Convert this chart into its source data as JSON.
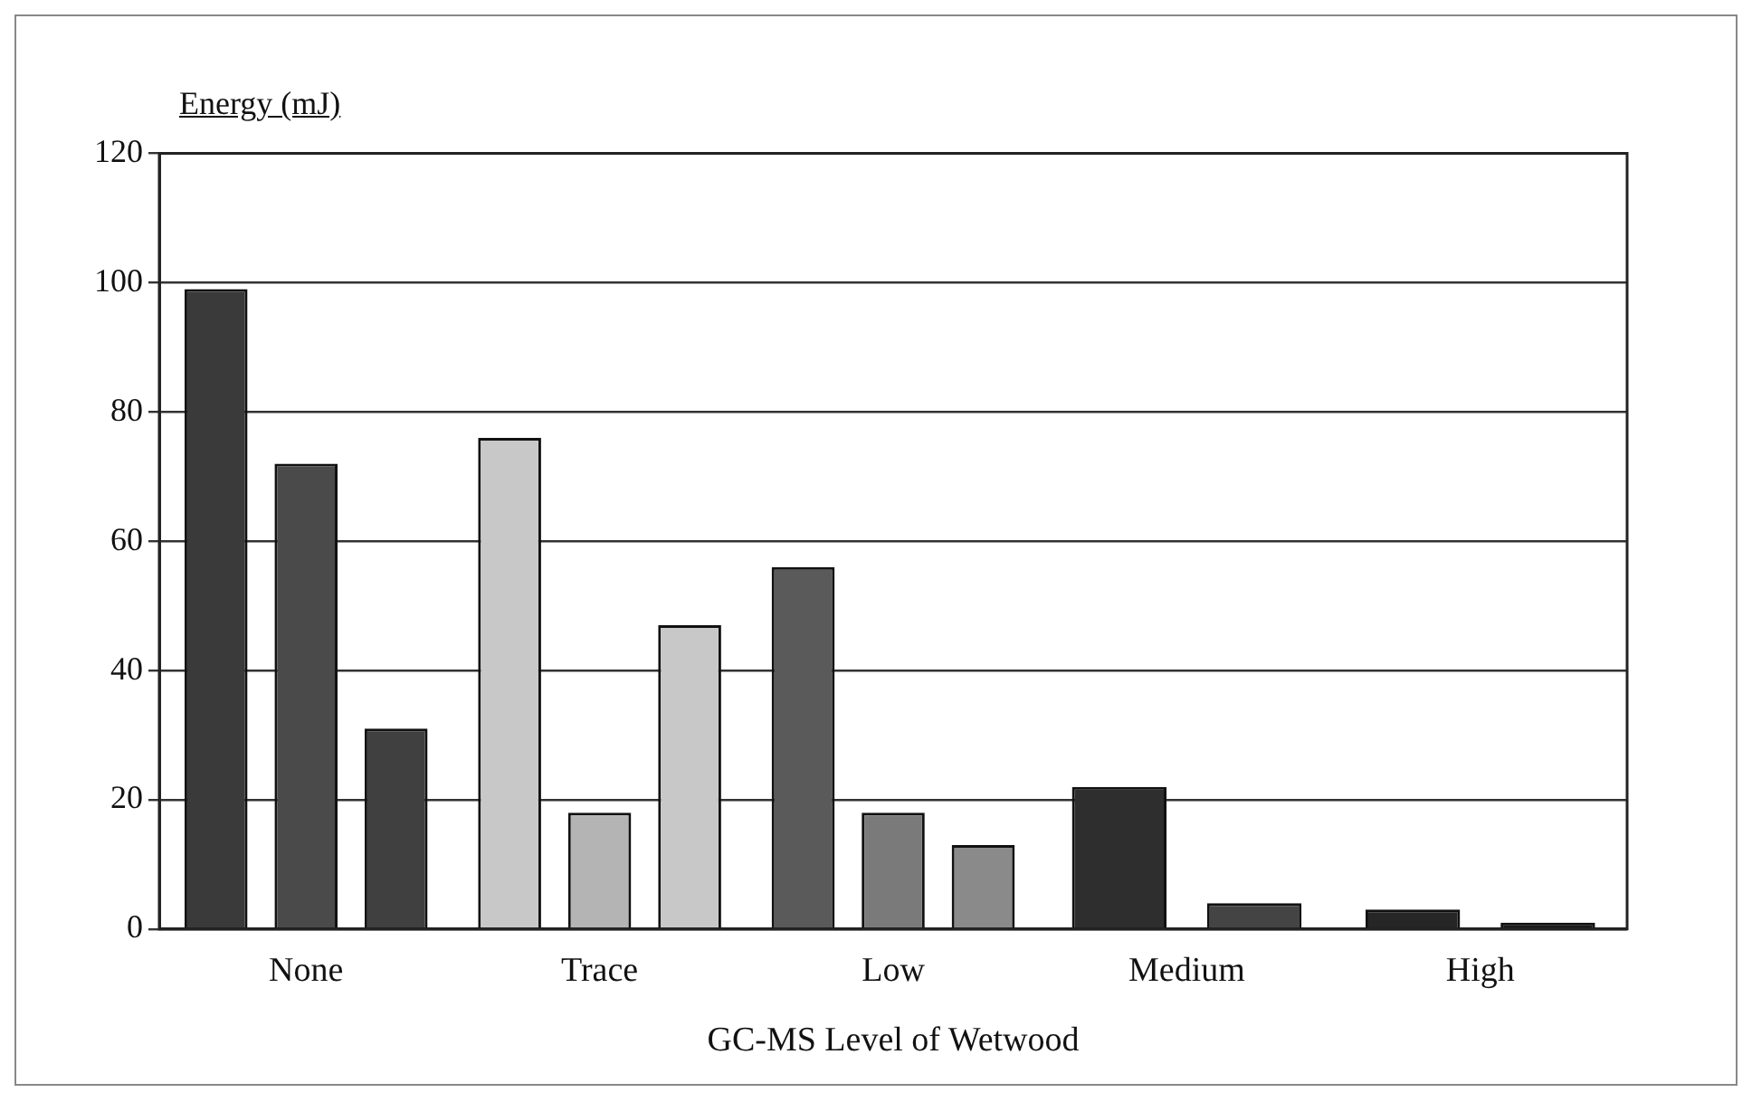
{
  "chart_data": {
    "type": "bar",
    "ylabel": "Energy (mJ)",
    "xlabel": "GC-MS Level of Wetwood",
    "categories": [
      "None",
      "Trace",
      "Low",
      "Medium",
      "High"
    ],
    "series": [
      {
        "colors": [
          "#3a3a3a",
          "#c8c8c8",
          "#5a5a5a",
          "#2e2e2e",
          "#262626"
        ],
        "values": [
          99,
          76,
          56,
          22,
          3
        ]
      },
      {
        "colors": [
          "#4a4a4a",
          "#b4b4b4",
          "#7a7a7a",
          "#444444",
          "#1a1a1a"
        ],
        "values": [
          72,
          18,
          18,
          4,
          1
        ]
      },
      {
        "colors": [
          "#404040",
          "#c8c8c8",
          "#8a8a8a",
          null,
          null
        ],
        "values": [
          31,
          47,
          13,
          null,
          null
        ]
      }
    ],
    "ylim": [
      0,
      120
    ],
    "yticks": [
      0,
      20,
      40,
      60,
      80,
      100,
      120
    ],
    "grid": "y",
    "legend": false
  }
}
